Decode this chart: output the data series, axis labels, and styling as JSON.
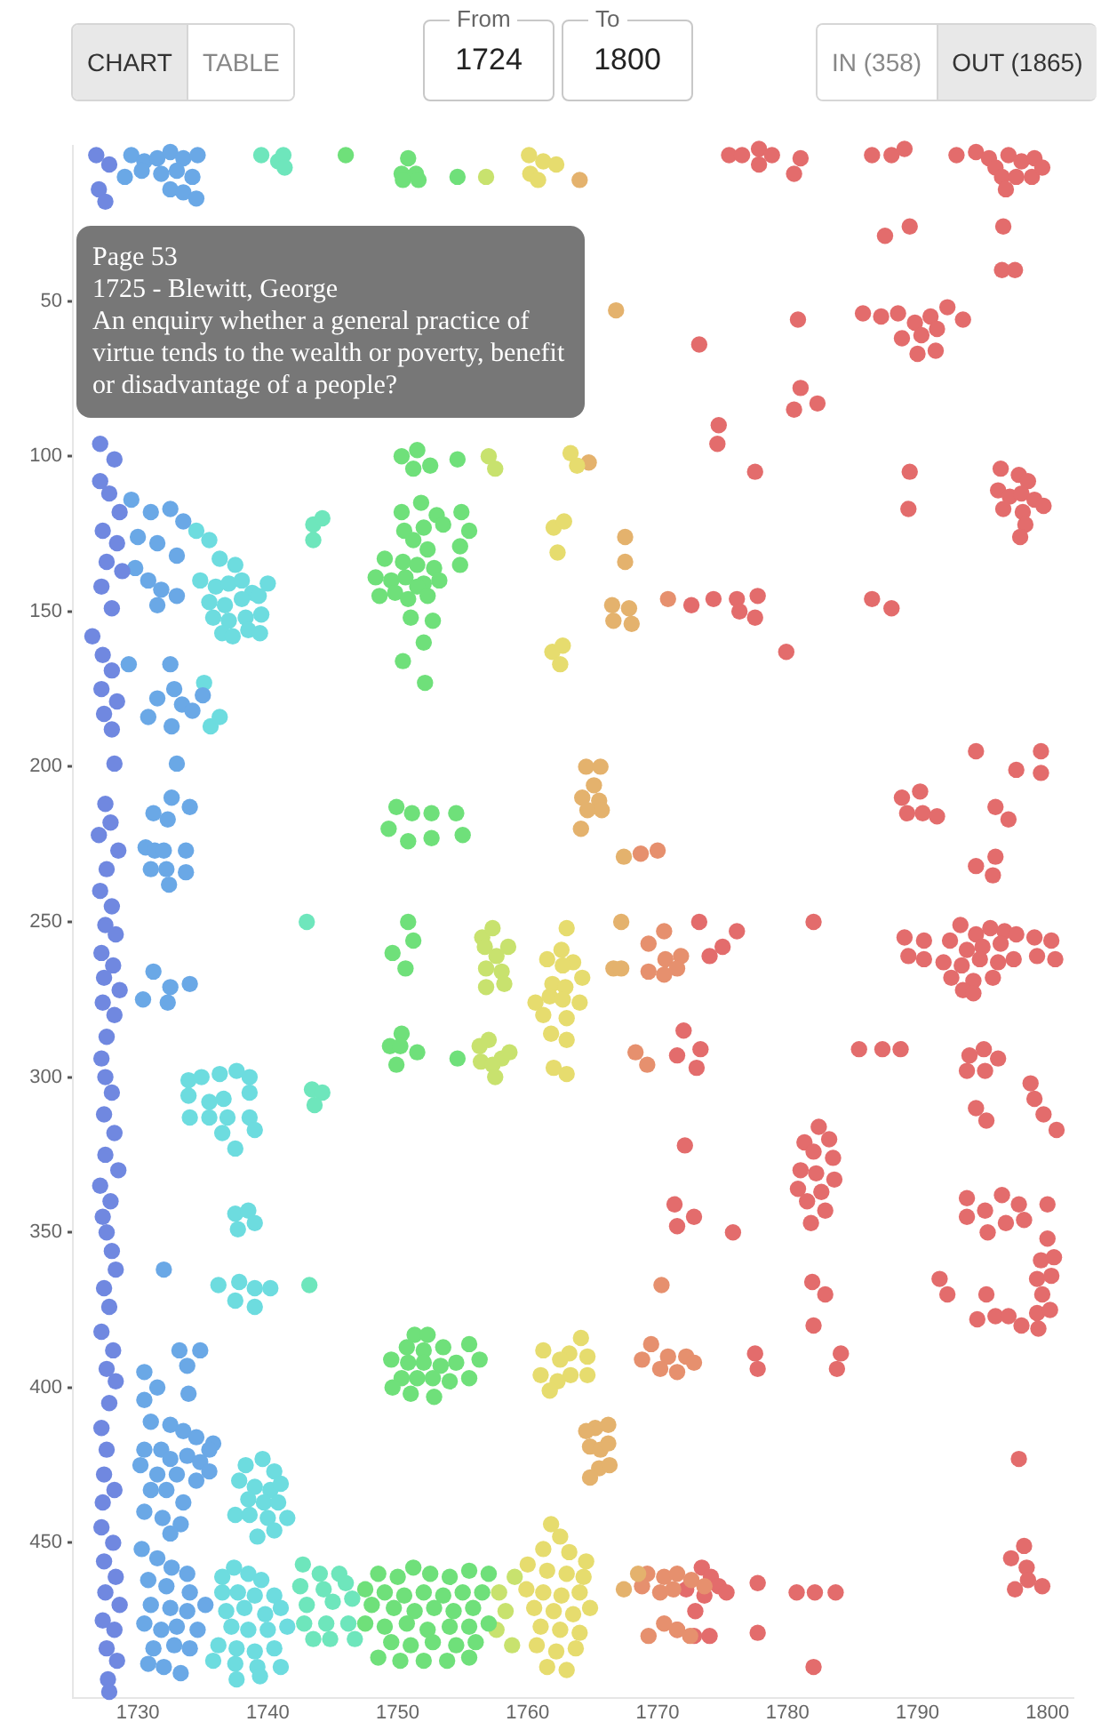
{
  "chart_data": {
    "type": "scatter",
    "marker": "circle",
    "legend": false,
    "grid": false,
    "xlim": [
      1725,
      1802
    ],
    "xticks": [
      1730,
      1740,
      1750,
      1760,
      1770,
      1780,
      1790,
      1800
    ],
    "ylim": [
      500,
      0
    ],
    "yticks": [
      50,
      100,
      150,
      200,
      250,
      300,
      350,
      400,
      450
    ],
    "annotations": [
      "Page 53\n1725 - Blewitt, George\nAn enquiry whether a general practice of virtue tends to the wealth or poverty, benefit or disadvantage of a people?",
      "CHART",
      "TABLE",
      "From",
      "1724",
      "To",
      "1800",
      "IN (358)",
      "OUT (1865)"
    ],
    "series": [
      {
        "color": "#7088e0",
        "x": [
          1726.8,
          1727.8,
          1727,
          1727.5,
          1727.1,
          1728.2,
          1727.1,
          1727.8,
          1728.6,
          1727.3,
          1728.4,
          1727.6,
          1728.8,
          1727.2,
          1728,
          1726.5,
          1727.3,
          1728,
          1727.2,
          1728.4,
          1727.4,
          1728,
          1728.2,
          1727.5,
          1727.9,
          1727,
          1728.5,
          1727.6,
          1727.1,
          1728,
          1727.5,
          1728.3,
          1727.2,
          1728.1,
          1727.4,
          1728.6,
          1727.3,
          1728.2,
          1727.6,
          1727.2,
          1727.5,
          1728,
          1727.4,
          1728.2,
          1727.5,
          1728.5,
          1727.1,
          1727.9,
          1727.3,
          1727.6,
          1728,
          1728.3,
          1727.4,
          1727.8,
          1727.2,
          1728.1,
          1727.6,
          1728.3,
          1727.8,
          1727.2,
          1727.6,
          1727.4,
          1728.2,
          1727.3,
          1727.2,
          1728.1,
          1727.4,
          1728.3,
          1727.5,
          1728.6,
          1727.3,
          1728.2,
          1727.6,
          1728.4,
          1727.7,
          1727.8
        ],
        "values": [
          3,
          6,
          14,
          18,
          96,
          101,
          108,
          112,
          118,
          124,
          128,
          134,
          137,
          142,
          149,
          158,
          164,
          169,
          175,
          179,
          183,
          188,
          199,
          212,
          218,
          222,
          227,
          233,
          240,
          245,
          251,
          254,
          260,
          264,
          268,
          272,
          276,
          280,
          287,
          294,
          300,
          305,
          312,
          318,
          325,
          330,
          335,
          340,
          345,
          350,
          356,
          362,
          368,
          374,
          382,
          388,
          394,
          398,
          405,
          413,
          420,
          428,
          433,
          437,
          445,
          450,
          456,
          461,
          466,
          470,
          475,
          478,
          484,
          488,
          494,
          498
        ]
      },
      {
        "color": "#6aa8e6",
        "x": [
          1729.5,
          1730.5,
          1731.5,
          1732.5,
          1733.5,
          1734.6,
          1729,
          1730.3,
          1731.8,
          1733,
          1734.2,
          1732.5,
          1733.5,
          1734.5,
          1729.5,
          1731,
          1732.5,
          1733.5,
          1730,
          1731.5,
          1733,
          1729.8,
          1730.8,
          1731.8,
          1733,
          1731.5,
          1729.3,
          1732.5,
          1732.8,
          1731.5,
          1733.4,
          1734.2,
          1730.8,
          1732.6,
          1735,
          1733,
          1732.6,
          1731.2,
          1732.3,
          1734,
          1730.6,
          1731.3,
          1732,
          1733.7,
          1731,
          1732.2,
          1733.7,
          1732.4,
          1731.2,
          1732.5,
          1734,
          1730.4,
          1732.3,
          1732,
          1733.2,
          1734.8,
          1733.8,
          1730.5,
          1731.5,
          1733.9,
          1730.5,
          1731,
          1732.5,
          1733.5,
          1734.5,
          1735.8,
          1730.5,
          1731.8,
          1732.5,
          1733.8,
          1734.8,
          1735.5,
          1730.2,
          1731.5,
          1733,
          1734.5,
          1735.5,
          1731,
          1732.2,
          1733.5,
          1730.5,
          1731.9,
          1733.3,
          1732.5,
          1730.3,
          1731.5,
          1732.6,
          1733.8,
          1730.8,
          1732.2,
          1734,
          1731,
          1732.5,
          1733.8,
          1735.2,
          1730.5,
          1731.8,
          1733,
          1734.6,
          1731.2,
          1732.8,
          1734,
          1730.8,
          1732,
          1733.3
        ],
        "values": [
          3,
          5,
          4,
          2,
          4,
          3,
          10,
          8,
          9,
          8,
          10,
          14,
          15,
          17,
          114,
          118,
          117,
          121,
          126,
          128,
          132,
          136,
          140,
          143,
          145,
          148,
          167,
          167,
          175,
          178,
          180,
          182,
          184,
          187,
          177,
          199,
          210,
          215,
          217,
          213,
          226,
          227,
          227,
          227,
          233,
          233,
          234,
          238,
          266,
          271,
          270,
          275,
          276,
          362,
          388,
          388,
          393,
          395,
          400,
          402,
          404,
          411,
          412,
          414,
          416,
          418,
          420,
          420,
          423,
          422,
          424,
          420,
          425,
          428,
          428,
          430,
          427,
          433,
          433,
          437,
          440,
          442,
          444,
          447,
          452,
          455,
          458,
          460,
          462,
          464,
          466,
          470,
          471,
          472,
          470,
          476,
          478,
          477,
          478,
          484,
          483,
          484,
          489,
          490,
          492
        ]
      },
      {
        "color": "#6ddcdf",
        "x": [
          1734.5,
          1735.5,
          1736.3,
          1737.5,
          1734.8,
          1736,
          1737,
          1738,
          1738.8,
          1735.5,
          1736.7,
          1738,
          1739.3,
          1740,
          1735.8,
          1737,
          1738.3,
          1739.5,
          1736.5,
          1737.3,
          1738.5,
          1739.4,
          1735.1,
          1735.6,
          1736.3,
          1733.9,
          1734.9,
          1736.3,
          1737.6,
          1738.6,
          1733.9,
          1735.5,
          1736.6,
          1738.6,
          1734,
          1735.5,
          1736.9,
          1738.6,
          1736.5,
          1739,
          1737.5,
          1737.5,
          1738.5,
          1739,
          1737.7,
          1736.2,
          1737.8,
          1739,
          1740.2,
          1737.5,
          1739,
          1738.3,
          1739.6,
          1740.5,
          1737.8,
          1739,
          1740.2,
          1741,
          1738.5,
          1739.7,
          1740.8,
          1737.5,
          1738.6,
          1740,
          1741.5,
          1739.2,
          1740.5,
          1736.5,
          1737.4,
          1738.5,
          1739.5,
          1736.5,
          1737.7,
          1739,
          1740.5,
          1736.8,
          1738.2,
          1739.8,
          1741,
          1737.2,
          1738.5,
          1740,
          1741.5,
          1736.2,
          1737.6,
          1739,
          1740.5,
          1735.8,
          1737.5,
          1739.2,
          1741,
          1737.6,
          1739.4
        ],
        "values": [
          124,
          127,
          133,
          135,
          140,
          142,
          141,
          140,
          144,
          147,
          148,
          146,
          145,
          141,
          152,
          153,
          152,
          151,
          157,
          158,
          156,
          157,
          173,
          187,
          184,
          301,
          300,
          299,
          298,
          300,
          306,
          308,
          307,
          305,
          313,
          313,
          313,
          313,
          318,
          317,
          323,
          344,
          343,
          347,
          349,
          367,
          366,
          368,
          368,
          372,
          374,
          425,
          423,
          427,
          430,
          432,
          433,
          431,
          436,
          437,
          437,
          441,
          441,
          442,
          442,
          448,
          446,
          461,
          458,
          460,
          462,
          466,
          466,
          467,
          467,
          472,
          471,
          473,
          471,
          477,
          478,
          478,
          477,
          483,
          484,
          485,
          484,
          488,
          489,
          490,
          490,
          494,
          493
        ]
      },
      {
        "color": "#6ee6bc",
        "x": [
          1739.5,
          1740.8,
          1741.2,
          1741.3,
          1743.5,
          1744.2,
          1743.5,
          1743,
          1743.4,
          1744.2,
          1743.6,
          1743.2,
          1742.7,
          1744,
          1745.5,
          1742.5,
          1744.3,
          1746,
          1743,
          1745,
          1746.5,
          1742.8,
          1744.5,
          1746.2,
          1743.5,
          1744.8,
          1746.7
        ],
        "values": [
          3,
          5,
          3,
          7,
          122,
          120,
          127,
          250,
          304,
          305,
          309,
          367,
          457,
          460,
          460,
          464,
          465,
          463,
          470,
          469,
          468,
          476,
          476,
          476,
          481,
          481,
          481
        ]
      },
      {
        "color": "#6fe07a",
        "x": [
          1746,
          1750.8,
          1750.3,
          1751.4,
          1750.4,
          1751.6,
          1754.6,
          1750.3,
          1751.5,
          1752.5,
          1751.2,
          1754.6,
          1750.3,
          1751.8,
          1753,
          1754.9,
          1750.5,
          1752,
          1753.5,
          1755.5,
          1751.2,
          1752.3,
          1754.8,
          1749,
          1750.4,
          1751.5,
          1752.8,
          1754.8,
          1748.3,
          1749.5,
          1750.6,
          1752,
          1753.2,
          1748.6,
          1749.8,
          1750.8,
          1751.5,
          1752.3,
          1752.7,
          1751,
          1752,
          1750.4,
          1752.1,
          1749.9,
          1751.1,
          1752.6,
          1754.5,
          1749.3,
          1750.8,
          1752.6,
          1755,
          1750.8,
          1751.2,
          1749.6,
          1750.6,
          1750.3,
          1749.4,
          1750.2,
          1751.5,
          1749.9,
          1754.6,
          1751.3,
          1752.3,
          1750.7,
          1752,
          1753.5,
          1755.5,
          1749.5,
          1750.8,
          1752,
          1753.3,
          1754.5,
          1756.3,
          1750.3,
          1751.5,
          1752.7,
          1754,
          1755.5,
          1749.6,
          1751,
          1752.8,
          1748.5,
          1750,
          1751.2,
          1752.5,
          1754,
          1755.5,
          1757,
          1747.5,
          1749,
          1750.5,
          1752,
          1753.5,
          1755,
          1756.5,
          1748,
          1749.7,
          1751.3,
          1752.8,
          1754.3,
          1755.8,
          1747.5,
          1749,
          1750.7,
          1752.3,
          1754,
          1755.5,
          1757,
          1749.5,
          1751,
          1752.7,
          1754.5,
          1756,
          1748.5,
          1750.2,
          1752,
          1753.8,
          1755.5
        ],
        "values": [
          3,
          4,
          9,
          9,
          11,
          11,
          10,
          100,
          98,
          103,
          104,
          101,
          118,
          115,
          119,
          118,
          124,
          123,
          122,
          124,
          127,
          130,
          129,
          133,
          134,
          135,
          136,
          135,
          139,
          140,
          139,
          141,
          140,
          145,
          144,
          146,
          142,
          145,
          153,
          152,
          160,
          166,
          173,
          213,
          215,
          215,
          215,
          220,
          224,
          223,
          222,
          250,
          256,
          260,
          265,
          286,
          290,
          290,
          292,
          296,
          294,
          383,
          383,
          387,
          388,
          387,
          386,
          391,
          392,
          392,
          393,
          392,
          391,
          397,
          397,
          397,
          398,
          397,
          400,
          402,
          403,
          460,
          461,
          458,
          460,
          461,
          459,
          460,
          465,
          466,
          467,
          466,
          467,
          466,
          466,
          470,
          471,
          472,
          471,
          472,
          471,
          476,
          477,
          476,
          478,
          477,
          477,
          476,
          482,
          483,
          482,
          483,
          482,
          487,
          488,
          488,
          488,
          487
        ]
      },
      {
        "color": "#c8e26e",
        "x": [
          1756.8,
          1757,
          1757.5,
          1756.5,
          1757.3,
          1756.7,
          1757.6,
          1758.5,
          1756.8,
          1758,
          1756.8,
          1758.2,
          1756.3,
          1757,
          1758,
          1756.4,
          1757.3,
          1758.6,
          1757.5,
          1759,
          1757.8,
          1758.3,
          1757.6,
          1758.8
        ],
        "values": [
          10,
          100,
          104,
          255,
          252,
          258,
          261,
          258,
          265,
          266,
          271,
          270,
          290,
          288,
          294,
          295,
          296,
          292,
          300,
          461,
          466,
          472,
          478,
          483
        ]
      },
      {
        "color": "#e6dc6e",
        "x": [
          1760.1,
          1761.2,
          1760.2,
          1762.2,
          1760.8,
          1763.3,
          1763.8,
          1762,
          1762.8,
          1762.3,
          1761.9,
          1762.7,
          1762.5,
          1763.5,
          1761.5,
          1762.7,
          1761.9,
          1762.9,
          1764.2,
          1760.6,
          1761.7,
          1762.7,
          1764,
          1761.2,
          1763,
          1761.8,
          1763,
          1762,
          1763,
          1763,
          1762.6,
          1764.1,
          1763.2,
          1764.6,
          1761.2,
          1762.5,
          1761,
          1762.3,
          1763.3,
          1764.6,
          1761.7,
          1761.8,
          1762.5,
          1761.2,
          1763.2,
          1764.5,
          1760,
          1761.5,
          1763,
          1764.3,
          1759.9,
          1761.2,
          1762.6,
          1764,
          1760.5,
          1762,
          1763.5,
          1764.8,
          1761,
          1762.5,
          1764,
          1760.7,
          1762.2,
          1763.7,
          1761.5,
          1763
        ],
        "values": [
          3,
          5,
          9,
          6,
          11,
          99,
          103,
          123,
          121,
          131,
          163,
          161,
          167,
          263,
          262,
          264,
          270,
          271,
          268,
          276,
          274,
          275,
          276,
          280,
          281,
          286,
          288,
          297,
          299,
          252,
          259,
          384,
          389,
          390,
          388,
          391,
          396,
          398,
          396,
          396,
          401,
          444,
          448,
          452,
          453,
          456,
          457,
          459,
          460,
          461,
          465,
          466,
          467,
          466,
          471,
          472,
          473,
          471,
          477,
          478,
          479,
          483,
          485,
          484,
          490,
          491
        ]
      },
      {
        "color": "#e4b26d",
        "x": [
          1764,
          1766.8,
          1764.7,
          1767.5,
          1767.5,
          1766.5,
          1767.8,
          1766.6,
          1768,
          1764.5,
          1765.6,
          1764.2,
          1765.1,
          1765.5,
          1764.6,
          1765.7,
          1764.1,
          1767.4,
          1767.2,
          1766.6,
          1767.2,
          1765.2,
          1766.2,
          1764.5,
          1764.8,
          1765.6,
          1766.2,
          1765.5,
          1766.3,
          1764.8,
          1767.4,
          1768.5
        ],
        "values": [
          11,
          53,
          102,
          126,
          134,
          148,
          149,
          153,
          154,
          200,
          200,
          210,
          206,
          211,
          214,
          214,
          220,
          229,
          250,
          265,
          265,
          413,
          412,
          414,
          419,
          420,
          418,
          426,
          425,
          429,
          465,
          460
        ]
      },
      {
        "color": "#e6906e",
        "x": [
          1770.8,
          1768.7,
          1770,
          1770.5,
          1769.3,
          1770.6,
          1771.8,
          1769.3,
          1770.5,
          1771.5,
          1768.3,
          1769.2,
          1769.5,
          1770.8,
          1772.2,
          1768.8,
          1770.2,
          1771.5,
          1772.8,
          1770.3,
          1769.2,
          1770.5,
          1771.5,
          1768.8,
          1770.2,
          1771.2,
          1772.6,
          1773.6,
          1770.5,
          1769.3,
          1771.5,
          1772.5
        ],
        "values": [
          146,
          228,
          227,
          253,
          257,
          262,
          261,
          266,
          267,
          265,
          292,
          296,
          386,
          390,
          390,
          391,
          394,
          395,
          392,
          367,
          460,
          461,
          460,
          464,
          466,
          465,
          462,
          464,
          476,
          480,
          478,
          480
        ]
      },
      {
        "color": "#e36c6c",
        "x": [
          1775.5,
          1776.5,
          1777.8,
          1778.8,
          1777.8,
          1781,
          1780.5,
          1786.5,
          1788,
          1789,
          1793,
          1794.5,
          1795.5,
          1796,
          1797,
          1798,
          1799,
          1796.5,
          1797.6,
          1798.8,
          1799.6,
          1796.8,
          1787.5,
          1789.4,
          1796.6,
          1796.5,
          1797.5,
          1773.2,
          1780.8,
          1785.8,
          1787.2,
          1788.5,
          1789.8,
          1791,
          1792.3,
          1793.5,
          1788.8,
          1790.3,
          1791.5,
          1790,
          1791.4,
          1781,
          1782.3,
          1780.5,
          1774.7,
          1774.6,
          1777.5,
          1789.4,
          1796.4,
          1797.8,
          1798.5,
          1796.2,
          1797.1,
          1798,
          1799,
          1799.7,
          1796.6,
          1798.1,
          1798.3,
          1797.9,
          1789.3,
          1786.5,
          1788,
          1772.6,
          1774.3,
          1776.1,
          1777.7,
          1776.3,
          1777.5,
          1779.9,
          1794.5,
          1799.5,
          1797.6,
          1799.5,
          1788.8,
          1790.2,
          1789.2,
          1790.4,
          1791.5,
          1796,
          1797,
          1796,
          1794.5,
          1795.8,
          1773.2,
          1776.1,
          1775,
          1774,
          1782,
          1789,
          1790.5,
          1789.3,
          1790.5,
          1793.3,
          1794.5,
          1795.6,
          1796.7,
          1797.6,
          1792.5,
          1793.8,
          1795,
          1796.4,
          1799,
          1800.3,
          1792,
          1793.4,
          1794.8,
          1796.2,
          1797.4,
          1799.2,
          1800.6,
          1792.6,
          1794.3,
          1795.8,
          1793.5,
          1794.3,
          1772,
          1771.5,
          1773.3,
          1773,
          1785.5,
          1787.3,
          1788.7,
          1794,
          1795.1,
          1796.2,
          1793.8,
          1795.2,
          1798.7,
          1799,
          1794.5,
          1795.3,
          1799.7,
          1800.7,
          1772.1,
          1781.3,
          1782.4,
          1783.2,
          1782,
          1783.5,
          1781,
          1782.2,
          1783.6,
          1780.8,
          1782.6,
          1781.5,
          1782.9,
          1781.8,
          1771.3,
          1772.8,
          1771.5,
          1775.8,
          1793.8,
          1795.2,
          1796.5,
          1797.8,
          1793.8,
          1795.4,
          1796.8,
          1798.2,
          1800,
          1800,
          1799.5,
          1800.5,
          1799.2,
          1800.3,
          1791.7,
          1792.3,
          1795.3,
          1799.6,
          1794.6,
          1796,
          1797,
          1798,
          1799.2,
          1800.2,
          1799.3,
          1781.9,
          1782.9,
          1782,
          1777.5,
          1777.7,
          1784.1,
          1783.8,
          1797.8,
          1773.4,
          1774.1,
          1774.7,
          1772.2,
          1773.6,
          1775.3,
          1772.9,
          1771.5,
          1772.8,
          1774,
          1777.7,
          1780.7,
          1782.1,
          1783.7,
          1777.7,
          1782,
          1798.2,
          1797.2,
          1798.4,
          1798.5,
          1797.5,
          1799.6
        ],
        "values": [
          3,
          3,
          1,
          3,
          6,
          4,
          9,
          3,
          3,
          1,
          3,
          2,
          4,
          7,
          3,
          5,
          4,
          10,
          10,
          10,
          7,
          14,
          29,
          26,
          26,
          40,
          40,
          64,
          56,
          54,
          55,
          54,
          57,
          55,
          52,
          56,
          62,
          61,
          59,
          67,
          66,
          78,
          83,
          85,
          90,
          96,
          105,
          105,
          104,
          106,
          108,
          111,
          113,
          112,
          114,
          116,
          117,
          118,
          122,
          126,
          117,
          146,
          149,
          148,
          146,
          146,
          145,
          150,
          152,
          163,
          195,
          195,
          201,
          202,
          210,
          208,
          215,
          215,
          216,
          213,
          217,
          229,
          232,
          235,
          250,
          253,
          258,
          261,
          250,
          255,
          256,
          261,
          262,
          251,
          254,
          252,
          253,
          254,
          256,
          259,
          258,
          257,
          255,
          256,
          263,
          264,
          262,
          263,
          262,
          261,
          262,
          268,
          269,
          268,
          272,
          273,
          285,
          293,
          291,
          297,
          291,
          291,
          291,
          293,
          291,
          294,
          298,
          298,
          302,
          307,
          310,
          314,
          312,
          317,
          322,
          321,
          316,
          320,
          324,
          326,
          330,
          331,
          333,
          336,
          337,
          340,
          343,
          347,
          341,
          345,
          348,
          350,
          339,
          343,
          338,
          341,
          345,
          350,
          347,
          346,
          341,
          352,
          359,
          358,
          365,
          364,
          365,
          370,
          370,
          370,
          378,
          377,
          377,
          380,
          376,
          375,
          381,
          366,
          370,
          380,
          389,
          394,
          389,
          394,
          423,
          458,
          461,
          464,
          465,
          467,
          466,
          472,
          478,
          480,
          480,
          463,
          466,
          466,
          466,
          479,
          490,
          451,
          455,
          458,
          462,
          465,
          464
        ]
      }
    ]
  }
}
